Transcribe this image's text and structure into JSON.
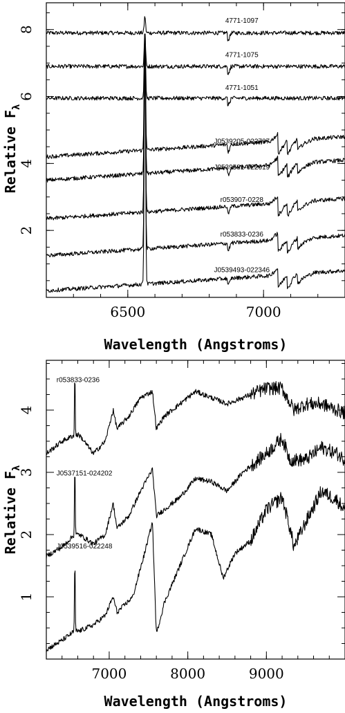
{
  "chart_data": [
    {
      "type": "line",
      "xlabel": "Wavelength (Angstroms)",
      "ylabel": "Relative F",
      "ylabel_subscript": "λ",
      "xlim": [
        6200,
        7300
      ],
      "ylim": [
        0,
        8.8
      ],
      "xticks": [
        6500,
        7000
      ],
      "yticks": [
        2,
        4,
        6,
        8
      ],
      "series": [
        {
          "name": "4771-1097",
          "offset": 7.9,
          "label_at": [
            6920,
            8.2
          ],
          "halpha": 0.5,
          "slope": 0.0,
          "band": 0.25
        },
        {
          "name": "4771-1075",
          "offset": 6.9,
          "label_at": [
            6920,
            7.18
          ],
          "halpha": 1.0,
          "slope": 0.0,
          "band": 0.25
        },
        {
          "name": "4771-1051",
          "offset": 5.95,
          "label_at": [
            6920,
            6.2
          ],
          "halpha": 2.0,
          "slope": 0.0,
          "band": 0.25
        },
        {
          "name": "J0539205-022737",
          "offset": 4.2,
          "label_at": [
            6920,
            4.6
          ],
          "halpha": 3.8,
          "slope": 0.6,
          "band": 0.5
        },
        {
          "name": "J0539581-022619",
          "offset": 3.5,
          "label_at": [
            6920,
            3.82
          ],
          "halpha": 4.4,
          "slope": 0.6,
          "band": 0.5
        },
        {
          "name": "r053907-0228",
          "offset": 2.35,
          "label_at": [
            6920,
            2.85
          ],
          "halpha": 5.5,
          "slope": 0.6,
          "band": 0.5
        },
        {
          "name": "r053833-0236",
          "offset": 1.25,
          "label_at": [
            6920,
            1.82
          ],
          "halpha": 6.5,
          "slope": 0.6,
          "band": 0.5
        },
        {
          "name": "J0539493-022346",
          "offset": 0.2,
          "label_at": [
            6920,
            0.75
          ],
          "halpha": 7.8,
          "slope": 0.6,
          "band": 0.5
        }
      ]
    },
    {
      "type": "line",
      "xlabel": "Wavelength (Angstroms)",
      "ylabel": "Relative F",
      "ylabel_subscript": "λ",
      "xlim": [
        6200,
        10000
      ],
      "ylim": [
        0,
        4.8
      ],
      "xticks": [
        7000,
        8000,
        9000
      ],
      "yticks": [
        1,
        2,
        3,
        4
      ],
      "series": [
        {
          "name": "r053833-0236",
          "label_at": [
            6330,
            4.45
          ],
          "points": [
            [
              6200,
              3.3
            ],
            [
              6400,
              3.5
            ],
            [
              6560,
              3.6
            ],
            [
              6620,
              3.6
            ],
            [
              6800,
              3.3
            ],
            [
              6950,
              3.5
            ],
            [
              7050,
              4.0
            ],
            [
              7100,
              3.7
            ],
            [
              7250,
              3.9
            ],
            [
              7400,
              4.2
            ],
            [
              7550,
              4.3
            ],
            [
              7600,
              3.7
            ],
            [
              7700,
              3.9
            ],
            [
              7900,
              4.1
            ],
            [
              8100,
              4.3
            ],
            [
              8300,
              4.2
            ],
            [
              8500,
              4.1
            ],
            [
              8700,
              4.2
            ],
            [
              9000,
              4.35
            ],
            [
              9200,
              4.35
            ],
            [
              9350,
              4.0
            ],
            [
              9500,
              4.1
            ],
            [
              9700,
              4.1
            ],
            [
              9900,
              4.0
            ],
            [
              10000,
              3.95
            ]
          ]
        },
        {
          "name": "J0537151-024202",
          "label_at": [
            6330,
            2.95
          ],
          "points": [
            [
              6200,
              1.65
            ],
            [
              6400,
              1.8
            ],
            [
              6560,
              2.0
            ],
            [
              6620,
              2.0
            ],
            [
              6800,
              1.85
            ],
            [
              6950,
              2.0
            ],
            [
              7050,
              2.5
            ],
            [
              7100,
              2.1
            ],
            [
              7250,
              2.3
            ],
            [
              7400,
              2.7
            ],
            [
              7550,
              3.05
            ],
            [
              7600,
              2.3
            ],
            [
              7700,
              2.4
            ],
            [
              7900,
              2.6
            ],
            [
              8100,
              2.9
            ],
            [
              8300,
              2.85
            ],
            [
              8500,
              2.7
            ],
            [
              8700,
              3.0
            ],
            [
              9000,
              3.3
            ],
            [
              9200,
              3.55
            ],
            [
              9300,
              3.2
            ],
            [
              9500,
              3.2
            ],
            [
              9700,
              3.4
            ],
            [
              9900,
              3.3
            ],
            [
              10000,
              3.2
            ]
          ]
        },
        {
          "name": "J0539516-022248",
          "label_at": [
            6330,
            1.78
          ],
          "points": [
            [
              6200,
              0.15
            ],
            [
              6400,
              0.3
            ],
            [
              6560,
              0.45
            ],
            [
              6620,
              0.45
            ],
            [
              6800,
              0.55
            ],
            [
              6950,
              0.7
            ],
            [
              7050,
              1.0
            ],
            [
              7100,
              0.75
            ],
            [
              7300,
              1.0
            ],
            [
              7450,
              1.7
            ],
            [
              7550,
              2.2
            ],
            [
              7600,
              0.4
            ],
            [
              7700,
              0.9
            ],
            [
              7900,
              1.5
            ],
            [
              8100,
              2.1
            ],
            [
              8300,
              2.0
            ],
            [
              8450,
              1.3
            ],
            [
              8600,
              1.7
            ],
            [
              8800,
              1.9
            ],
            [
              9000,
              2.4
            ],
            [
              9200,
              2.6
            ],
            [
              9300,
              2.1
            ],
            [
              9350,
              1.8
            ],
            [
              9500,
              2.2
            ],
            [
              9700,
              2.7
            ],
            [
              9900,
              2.55
            ],
            [
              10000,
              2.4
            ]
          ]
        }
      ]
    }
  ]
}
